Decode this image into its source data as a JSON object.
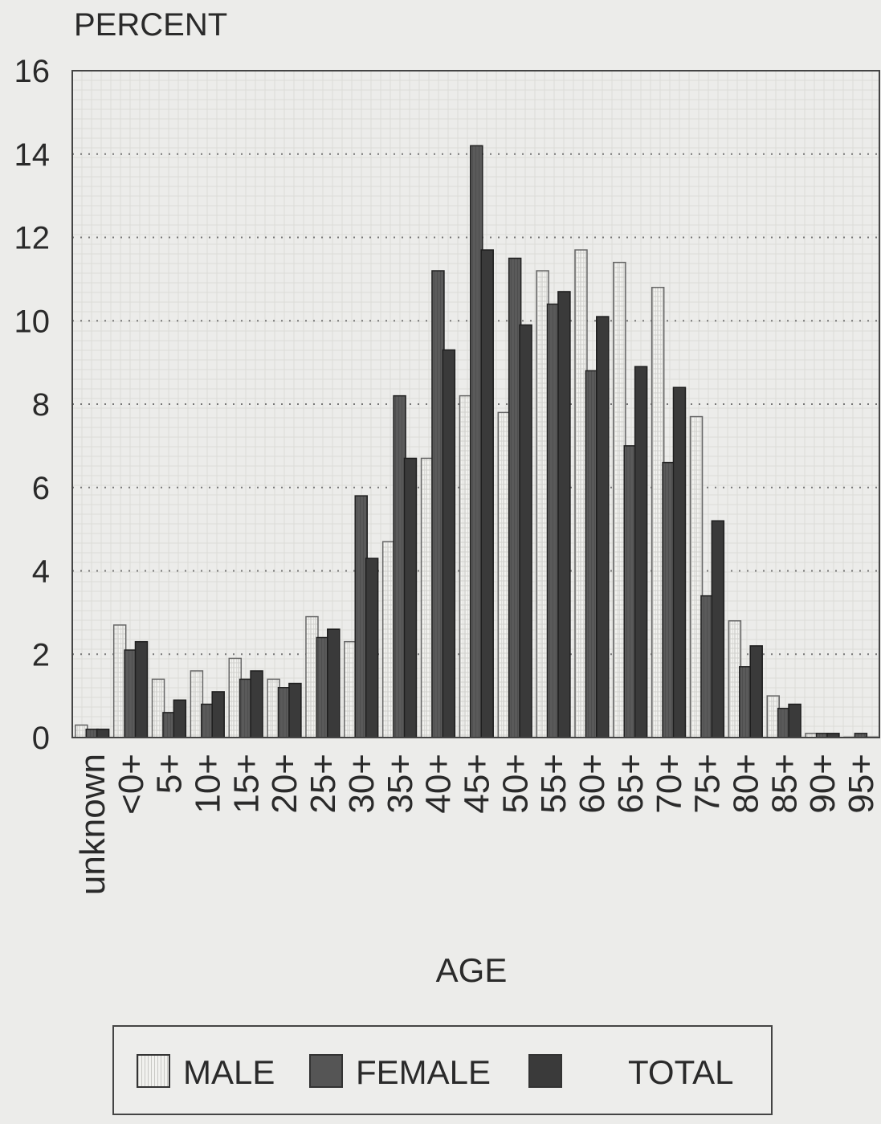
{
  "chart_data": {
    "type": "bar",
    "title": "",
    "ylabel": "PERCENT",
    "xlabel": "AGE",
    "ylim": [
      0,
      16
    ],
    "yticks": [
      0,
      2,
      4,
      6,
      8,
      10,
      12,
      14,
      16
    ],
    "grid": true,
    "legend_position": "bottom",
    "categories": [
      "unknown",
      "<0+",
      "5+",
      "10+",
      "15+",
      "20+",
      "25+",
      "30+",
      "35+",
      "40+",
      "45+",
      "50+",
      "55+",
      "60+",
      "65+",
      "70+",
      "75+",
      "80+",
      "85+",
      "90+",
      "95+"
    ],
    "series": [
      {
        "name": "MALE",
        "color": "#f2f2ef",
        "values": [
          0.3,
          2.7,
          1.4,
          1.6,
          1.9,
          1.4,
          2.9,
          2.3,
          4.7,
          6.7,
          8.2,
          7.8,
          11.2,
          11.7,
          11.4,
          10.8,
          7.7,
          2.8,
          1.0,
          0.1,
          0.0
        ]
      },
      {
        "name": "FEMALE",
        "color": "#555555",
        "values": [
          0.2,
          2.1,
          0.6,
          0.8,
          1.4,
          1.2,
          2.4,
          5.8,
          8.2,
          11.2,
          14.2,
          11.5,
          10.4,
          8.8,
          7.0,
          6.6,
          3.4,
          1.7,
          0.7,
          0.1,
          0.1
        ]
      },
      {
        "name": "TOTAL",
        "color": "#3a3a3a",
        "values": [
          0.2,
          2.3,
          0.9,
          1.1,
          1.6,
          1.3,
          2.6,
          4.3,
          6.7,
          9.3,
          11.7,
          9.9,
          10.7,
          10.1,
          8.9,
          8.4,
          5.2,
          2.2,
          0.8,
          0.1,
          0.0
        ]
      }
    ]
  }
}
